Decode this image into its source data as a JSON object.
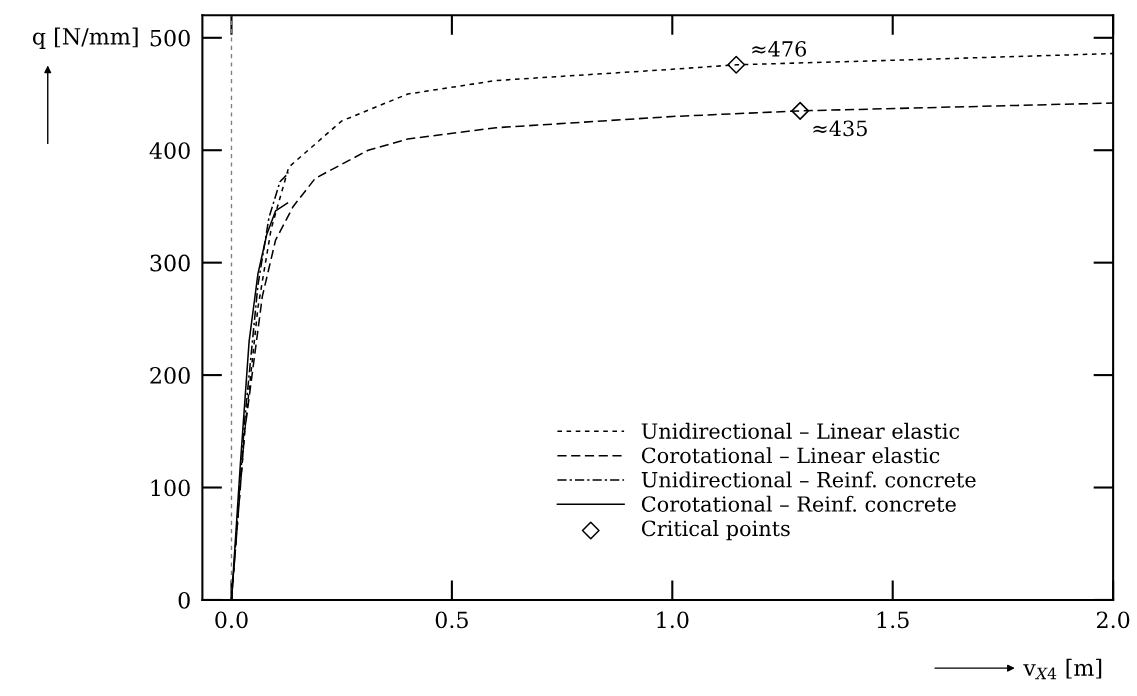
{
  "chart_data": {
    "type": "line",
    "xlabel": "v$_{X4}$ [m]",
    "ylabel": "q [N/mm]",
    "xlim": [
      -0.066,
      2.0
    ],
    "ylim": [
      0,
      520
    ],
    "xticks": [
      {
        "value": 0,
        "label": "0.0"
      },
      0.5,
      {
        "value": 1,
        "label": "1.0"
      },
      1.5,
      {
        "value": 2,
        "label": "2.0"
      }
    ],
    "yticks": [
      0,
      100,
      200,
      300,
      400,
      500
    ],
    "grid": false,
    "legend": "bottom",
    "marker": "none",
    "ref_lines": [
      {
        "axis": "x",
        "value": 0,
        "color": "#808080",
        "line_style": "dotted"
      }
    ],
    "series": [
      {
        "name": "Unidirectional – Linear elastic",
        "color": "#000000",
        "line_style": "dotted",
        "x": [
          0,
          0.03,
          0.06,
          0.09,
          0.13,
          0.25,
          0.4,
          0.6,
          1.0,
          1.145,
          1.5,
          2.0
        ],
        "values": [
          0,
          150,
          260,
          330,
          385,
          426,
          450,
          462,
          472,
          476,
          480,
          486
        ]
      },
      {
        "name": "Corotational – Linear elastic",
        "color": "#000000",
        "line_style": "dashed",
        "x": [
          0,
          0.03,
          0.07,
          0.1,
          0.14,
          0.19,
          0.31,
          0.4,
          0.6,
          1.0,
          1.29,
          2.0
        ],
        "values": [
          0,
          150,
          270,
          320,
          350,
          375,
          400,
          410,
          420,
          430,
          435,
          442
        ]
      },
      {
        "name": "Unidirectional – Reinf. concrete",
        "color": "#000000",
        "line_style": "dashdot",
        "x": [
          0,
          0.03,
          0.06,
          0.085,
          0.11,
          0.13
        ],
        "values": [
          0,
          160,
          280,
          340,
          372,
          380
        ]
      },
      {
        "name": "Corotational – Reinf. concrete",
        "color": "#000000",
        "line_style": "solid",
        "x": [
          0,
          0.02,
          0.04,
          0.06,
          0.08,
          0.1,
          0.127
        ],
        "values": [
          0,
          120,
          230,
          290,
          325,
          346,
          353
        ]
      },
      {
        "name": "Critical points",
        "type": "scatter",
        "marker": "diamond",
        "color": "#000000",
        "x": [
          1.145,
          1.29
        ],
        "values": [
          476,
          435
        ]
      }
    ],
    "annotations": [
      {
        "text": "≈476",
        "x": 1.145,
        "y": 476
      },
      {
        "text": "≈435",
        "x": 1.29,
        "y": 435
      }
    ]
  }
}
